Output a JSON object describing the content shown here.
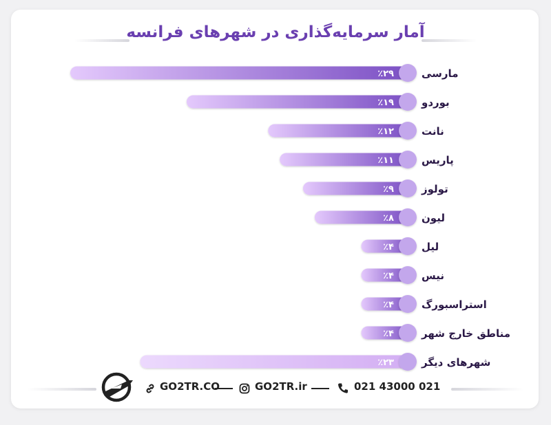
{
  "title": "آمار سرمایه‌گذاری در شهرهای فرانسه",
  "chart_data": {
    "type": "bar",
    "orientation": "horizontal",
    "categories": [
      "مارسی",
      "بوردو",
      "نانت",
      "پاریس",
      "تولوز",
      "لیون",
      "لیل",
      "نیس",
      "استراسبورگ",
      "مناطق خارج شهر",
      "شهرهای دیگر"
    ],
    "values": [
      29,
      19,
      12,
      11,
      9,
      8,
      4,
      4,
      4,
      4,
      23
    ],
    "value_labels": [
      "٪۲۹",
      "٪۱۹",
      "٪۱۲",
      "٪۱۱",
      "٪۹",
      "٪۸",
      "٪۴",
      "٪۴",
      "٪۴",
      "٪۴",
      "٪۲۳"
    ],
    "unit": "%",
    "xlim": [
      0,
      29
    ],
    "grid": false,
    "legend": "none",
    "colors": {
      "bar_dark": "#7b4fc4",
      "bar_light": "#e2c6fb",
      "last_bar_dark": "#d6b2f4",
      "last_bar_light": "#ead6fc",
      "circle": "#c3a7ec",
      "value_text": "#ffffff",
      "label_text": "#2a1846"
    }
  },
  "footer": {
    "phone": "021 43000 021",
    "instagram": "GO2TR.ir",
    "website": "GO2TR.CO",
    "icons": [
      "phone-icon",
      "instagram-icon",
      "link-icon",
      "go2tr-logo"
    ]
  }
}
